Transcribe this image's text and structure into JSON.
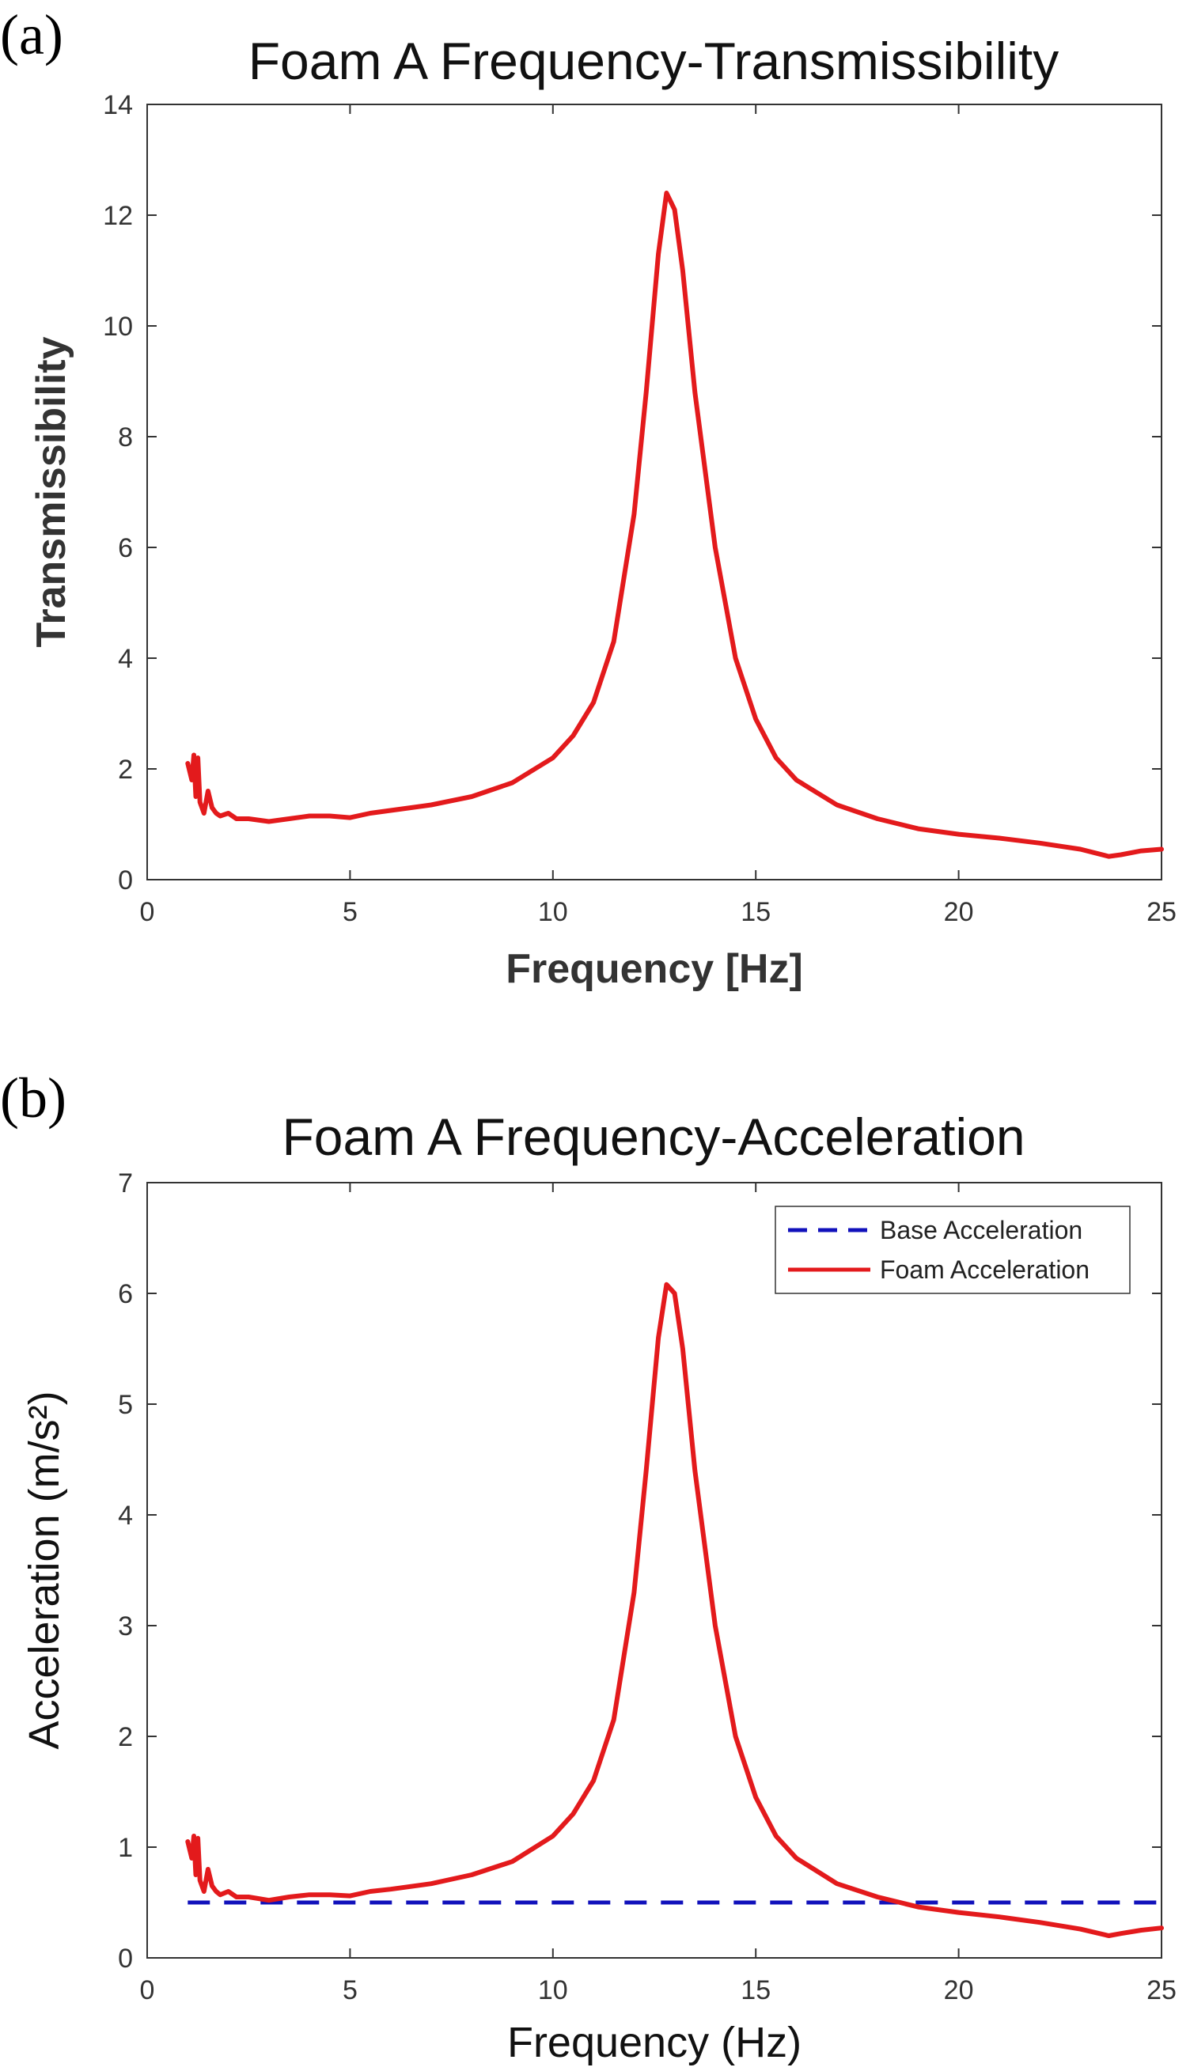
{
  "chart_data": [
    {
      "type": "line",
      "panel_label": "(a)",
      "title": "Foam A Frequency-Transmissibility",
      "xlabel": "Frequency [Hz]",
      "ylabel": "Transmissibility",
      "xlim": [
        0,
        25
      ],
      "ylim": [
        0,
        14
      ],
      "xticks": [
        0,
        5,
        10,
        15,
        20,
        25
      ],
      "yticks": [
        0,
        2,
        4,
        6,
        8,
        10,
        12,
        14
      ],
      "grid": false,
      "series": [
        {
          "color": "#e31a1c",
          "style": "solid",
          "x": [
            1.0,
            1.1,
            1.15,
            1.2,
            1.25,
            1.3,
            1.4,
            1.5,
            1.6,
            1.7,
            1.8,
            2.0,
            2.2,
            2.5,
            3.0,
            3.5,
            4.0,
            4.5,
            5.0,
            5.5,
            6.0,
            7.0,
            8.0,
            9.0,
            10.0,
            10.5,
            11.0,
            11.5,
            12.0,
            12.3,
            12.6,
            12.8,
            13.0,
            13.2,
            13.5,
            14.0,
            14.5,
            15.0,
            15.5,
            16.0,
            17.0,
            18.0,
            19.0,
            20.0,
            21.0,
            22.0,
            23.0,
            23.7,
            24.0,
            24.5,
            25.0
          ],
          "values": [
            2.1,
            1.8,
            2.25,
            1.5,
            2.2,
            1.4,
            1.2,
            1.6,
            1.3,
            1.2,
            1.15,
            1.2,
            1.1,
            1.1,
            1.05,
            1.1,
            1.15,
            1.15,
            1.12,
            1.2,
            1.25,
            1.35,
            1.5,
            1.75,
            2.2,
            2.6,
            3.2,
            4.3,
            6.6,
            8.8,
            11.3,
            12.4,
            12.1,
            11.0,
            8.8,
            6.0,
            4.0,
            2.9,
            2.2,
            1.8,
            1.35,
            1.1,
            0.92,
            0.82,
            0.75,
            0.66,
            0.55,
            0.42,
            0.45,
            0.52,
            0.55
          ]
        }
      ]
    },
    {
      "type": "line",
      "panel_label": "(b)",
      "title": "Foam A Frequency-Acceleration",
      "xlabel": "Frequency (Hz)",
      "ylabel": "Acceleration (m/s²)",
      "xlim": [
        0,
        25
      ],
      "ylim": [
        0,
        7
      ],
      "xticks": [
        0,
        5,
        10,
        15,
        20,
        25
      ],
      "yticks": [
        0,
        1,
        2,
        3,
        4,
        5,
        6,
        7
      ],
      "grid": false,
      "legend_position": "top-right",
      "series": [
        {
          "name": "Base Acceleration",
          "color": "#1111bb",
          "style": "dashed",
          "x": [
            1.0,
            25.0
          ],
          "values": [
            0.5,
            0.5
          ]
        },
        {
          "name": "Foam Acceleration",
          "color": "#e31a1c",
          "style": "solid",
          "x": [
            1.0,
            1.1,
            1.15,
            1.2,
            1.25,
            1.3,
            1.4,
            1.5,
            1.6,
            1.7,
            1.8,
            2.0,
            2.2,
            2.5,
            3.0,
            3.5,
            4.0,
            4.5,
            5.0,
            5.5,
            6.0,
            7.0,
            8.0,
            9.0,
            10.0,
            10.5,
            11.0,
            11.5,
            12.0,
            12.3,
            12.6,
            12.8,
            13.0,
            13.2,
            13.5,
            14.0,
            14.5,
            15.0,
            15.5,
            16.0,
            17.0,
            18.0,
            19.0,
            20.0,
            21.0,
            22.0,
            23.0,
            23.7,
            24.0,
            24.5,
            25.0
          ],
          "values": [
            1.05,
            0.9,
            1.1,
            0.75,
            1.08,
            0.7,
            0.6,
            0.8,
            0.65,
            0.6,
            0.57,
            0.6,
            0.55,
            0.55,
            0.52,
            0.55,
            0.57,
            0.57,
            0.56,
            0.6,
            0.62,
            0.67,
            0.75,
            0.87,
            1.1,
            1.3,
            1.6,
            2.15,
            3.3,
            4.4,
            5.6,
            6.08,
            6.0,
            5.5,
            4.4,
            3.0,
            2.0,
            1.45,
            1.1,
            0.9,
            0.67,
            0.55,
            0.46,
            0.41,
            0.37,
            0.32,
            0.26,
            0.2,
            0.22,
            0.25,
            0.27
          ]
        }
      ]
    }
  ]
}
